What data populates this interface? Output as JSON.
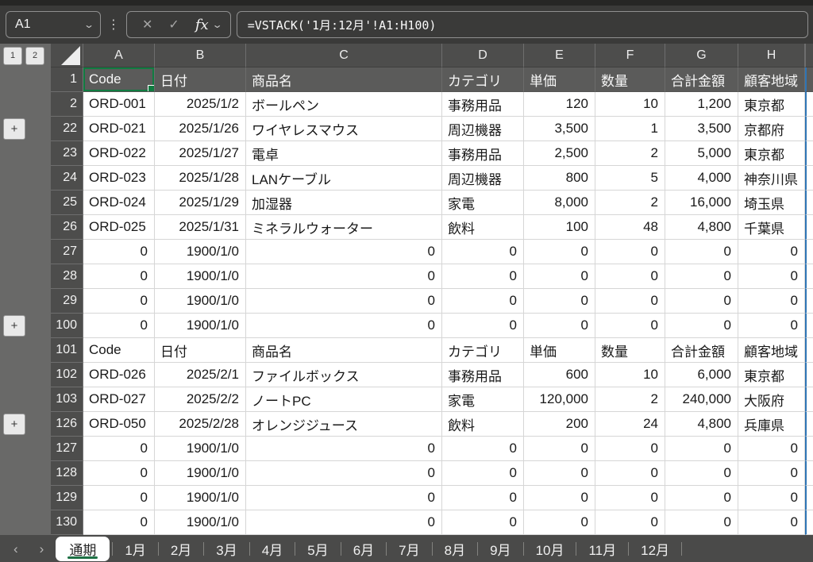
{
  "formula_bar": {
    "name_box_value": "A1",
    "cancel_label": "✕",
    "enter_label": "✓",
    "fx_label": "fx",
    "formula": "=VSTACK('1月:12月'!A1:H100)"
  },
  "outline": {
    "level_buttons": [
      "1",
      "2"
    ],
    "plus_button_label": "+"
  },
  "grid": {
    "column_headers": [
      "A",
      "B",
      "C",
      "D",
      "E",
      "F",
      "G",
      "H"
    ],
    "rows": [
      {
        "num": "1",
        "style": "head-dark",
        "selected_first": true,
        "cells": [
          "Code",
          "日付",
          "商品名",
          "カテゴリ",
          "単価",
          "数量",
          "合計金額",
          "顧客地域"
        ]
      },
      {
        "num": "2",
        "style": "data",
        "cells": [
          "ORD-001",
          "2025/1/2",
          "ボールペン",
          "事務用品",
          "120",
          "10",
          "1,200",
          "東京都"
        ]
      },
      {
        "num": "22",
        "style": "data",
        "plus": true,
        "cells": [
          "ORD-021",
          "2025/1/26",
          "ワイヤレスマウス",
          "周辺機器",
          "3,500",
          "1",
          "3,500",
          "京都府"
        ]
      },
      {
        "num": "23",
        "style": "data",
        "cells": [
          "ORD-022",
          "2025/1/27",
          "電卓",
          "事務用品",
          "2,500",
          "2",
          "5,000",
          "東京都"
        ]
      },
      {
        "num": "24",
        "style": "data",
        "cells": [
          "ORD-023",
          "2025/1/28",
          "LANケーブル",
          "周辺機器",
          "800",
          "5",
          "4,000",
          "神奈川県"
        ]
      },
      {
        "num": "25",
        "style": "data",
        "cells": [
          "ORD-024",
          "2025/1/29",
          "加湿器",
          "家電",
          "8,000",
          "2",
          "16,000",
          "埼玉県"
        ]
      },
      {
        "num": "26",
        "style": "data",
        "cells": [
          "ORD-025",
          "2025/1/31",
          "ミネラルウォーター",
          "飲料",
          "100",
          "48",
          "4,800",
          "千葉県"
        ]
      },
      {
        "num": "27",
        "style": "zero",
        "cells": [
          "0",
          "1900/1/0",
          "0",
          "0",
          "0",
          "0",
          "0",
          "0"
        ]
      },
      {
        "num": "28",
        "style": "zero",
        "cells": [
          "0",
          "1900/1/0",
          "0",
          "0",
          "0",
          "0",
          "0",
          "0"
        ]
      },
      {
        "num": "29",
        "style": "zero",
        "cells": [
          "0",
          "1900/1/0",
          "0",
          "0",
          "0",
          "0",
          "0",
          "0"
        ]
      },
      {
        "num": "100",
        "style": "zero",
        "plus": true,
        "cells": [
          "0",
          "1900/1/0",
          "0",
          "0",
          "0",
          "0",
          "0",
          "0"
        ]
      },
      {
        "num": "101",
        "style": "head-plain",
        "cells": [
          "Code",
          "日付",
          "商品名",
          "カテゴリ",
          "単価",
          "数量",
          "合計金額",
          "顧客地域"
        ]
      },
      {
        "num": "102",
        "style": "data",
        "cells": [
          "ORD-026",
          "2025/2/1",
          "ファイルボックス",
          "事務用品",
          "600",
          "10",
          "6,000",
          "東京都"
        ]
      },
      {
        "num": "103",
        "style": "data",
        "cells": [
          "ORD-027",
          "2025/2/2",
          "ノートPC",
          "家電",
          "120,000",
          "2",
          "240,000",
          "大阪府"
        ]
      },
      {
        "num": "126",
        "style": "data",
        "plus": true,
        "cells": [
          "ORD-050",
          "2025/2/28",
          "オレンジジュース",
          "飲料",
          "200",
          "24",
          "4,800",
          "兵庫県"
        ]
      },
      {
        "num": "127",
        "style": "zero",
        "cells": [
          "0",
          "1900/1/0",
          "0",
          "0",
          "0",
          "0",
          "0",
          "0"
        ]
      },
      {
        "num": "128",
        "style": "zero",
        "cells": [
          "0",
          "1900/1/0",
          "0",
          "0",
          "0",
          "0",
          "0",
          "0"
        ]
      },
      {
        "num": "129",
        "style": "zero",
        "cells": [
          "0",
          "1900/1/0",
          "0",
          "0",
          "0",
          "0",
          "0",
          "0"
        ]
      },
      {
        "num": "130",
        "style": "zero",
        "cells": [
          "0",
          "1900/1/0",
          "0",
          "0",
          "0",
          "0",
          "0",
          "0"
        ]
      }
    ]
  },
  "sheet_tabs": {
    "prev_label": "‹",
    "next_label": "›",
    "tabs": [
      {
        "label": "通期",
        "active": true
      },
      {
        "label": "1月"
      },
      {
        "label": "2月"
      },
      {
        "label": "3月"
      },
      {
        "label": "4月"
      },
      {
        "label": "5月"
      },
      {
        "label": "6月"
      },
      {
        "label": "7月"
      },
      {
        "label": "8月"
      },
      {
        "label": "9月"
      },
      {
        "label": "10月"
      },
      {
        "label": "11月"
      },
      {
        "label": "12月"
      }
    ]
  },
  "colors": {
    "bar_bg": "#3a3a39",
    "header_bg": "#4d4d4c",
    "row1_bg": "#5b5b5a",
    "tab_bar_bg": "#4a4a49",
    "accent_green": "#1e7145",
    "selection_green": "#107c41",
    "spill_blue": "#2e75b6",
    "cell_bg": "#ffffff"
  }
}
